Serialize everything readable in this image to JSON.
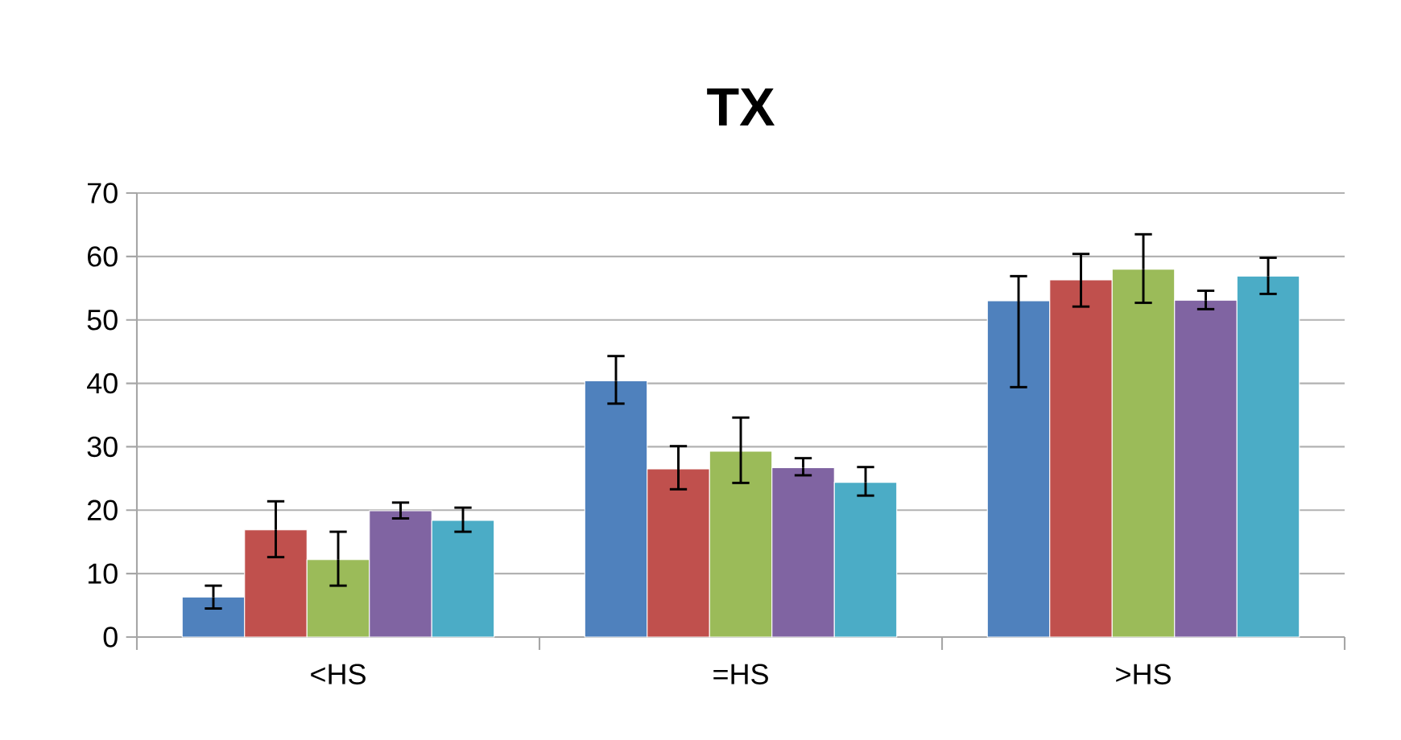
{
  "chart_data": {
    "type": "bar",
    "title": "TX",
    "categories": [
      "<HS",
      "=HS",
      ">HS"
    ],
    "series": [
      {
        "color": "#4f81bd",
        "values": [
          6.3,
          40.4,
          53.0
        ],
        "errors": [
          [
            4.5,
            8.1
          ],
          [
            36.8,
            44.3
          ],
          [
            39.4,
            56.9
          ]
        ]
      },
      {
        "color": "#c0504d",
        "values": [
          16.9,
          26.5,
          56.3
        ],
        "errors": [
          [
            12.6,
            21.4
          ],
          [
            23.3,
            30.1
          ],
          [
            52.1,
            60.4
          ]
        ]
      },
      {
        "color": "#9bbb59",
        "values": [
          12.2,
          29.3,
          58.0
        ],
        "errors": [
          [
            8.1,
            16.6
          ],
          [
            24.3,
            34.6
          ],
          [
            52.7,
            63.5
          ]
        ]
      },
      {
        "color": "#8064a2",
        "values": [
          19.9,
          26.7,
          53.1
        ],
        "errors": [
          [
            18.7,
            21.2
          ],
          [
            25.5,
            28.2
          ],
          [
            51.7,
            54.6
          ]
        ]
      },
      {
        "color": "#4bacc6",
        "values": [
          18.4,
          24.4,
          56.9
        ],
        "errors": [
          [
            16.6,
            20.4
          ],
          [
            22.3,
            26.8
          ],
          [
            54.1,
            59.8
          ]
        ]
      }
    ],
    "ylim": [
      0,
      70
    ],
    "yticks": [
      0,
      10,
      20,
      30,
      40,
      50,
      60,
      70
    ],
    "grid": "y",
    "legend": false
  }
}
